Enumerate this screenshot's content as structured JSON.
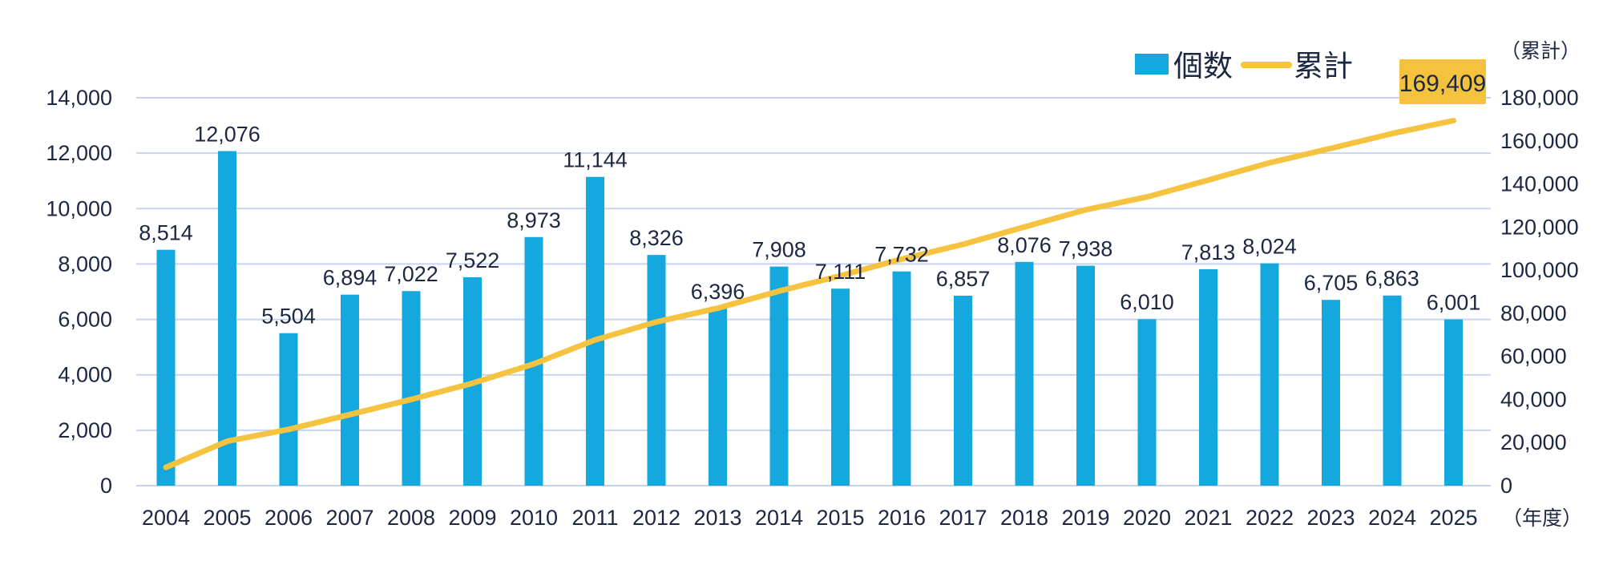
{
  "chart_data": {
    "type": "combo-bar-line",
    "title": "",
    "categories": [
      "2004",
      "2005",
      "2006",
      "2007",
      "2008",
      "2009",
      "2010",
      "2011",
      "2012",
      "2013",
      "2014",
      "2015",
      "2016",
      "2017",
      "2018",
      "2019",
      "2020",
      "2021",
      "2022",
      "2023",
      "2024",
      "2025"
    ],
    "series": [
      {
        "name": "個数",
        "type": "bar",
        "axis": "left",
        "color": "#14A8DE",
        "values": [
          8514,
          12076,
          5504,
          6894,
          7022,
          7522,
          8973,
          11144,
          8326,
          6396,
          7908,
          7111,
          7732,
          6857,
          8076,
          7938,
          6010,
          7813,
          8024,
          6705,
          6863,
          6001
        ]
      },
      {
        "name": "累計",
        "type": "line",
        "axis": "right",
        "color": "#F6C340",
        "values": [
          8514,
          20590,
          26094,
          32988,
          40010,
          47532,
          56505,
          67649,
          75975,
          82371,
          90279,
          97390,
          105122,
          111979,
          120055,
          127993,
          134003,
          141816,
          149840,
          156545,
          163408,
          169409
        ]
      }
    ],
    "left_axis": {
      "min": 0,
      "max": 14000,
      "step": 2000,
      "tick_labels": [
        "0",
        "2,000",
        "4,000",
        "6,000",
        "8,000",
        "10,000",
        "12,000",
        "14,000"
      ]
    },
    "right_axis": {
      "min": 0,
      "max": 180000,
      "step": 20000,
      "title": "（累計）",
      "tick_labels": [
        "0",
        "20,000",
        "40,000",
        "60,000",
        "80,000",
        "100,000",
        "120,000",
        "140,000",
        "160,000",
        "180,000"
      ]
    },
    "x_axis": {
      "title": "（年度）"
    },
    "legend": {
      "position": "top-right",
      "items": [
        {
          "label": "個数",
          "marker": "square",
          "color": "#14A8DE"
        },
        {
          "label": "累計",
          "marker": "line",
          "color": "#F6C340"
        }
      ]
    },
    "annotation": {
      "text": "169,409",
      "background": "#F5C23E",
      "refers_to": "2025 cumulative value"
    },
    "grid": true,
    "colors": {
      "bar": "#14A8DE",
      "line": "#F6C340",
      "gridline": "#C7D4EE",
      "text": "#1C2742",
      "annotation_bg": "#F5C23E",
      "background": "#FFFFFF"
    }
  }
}
